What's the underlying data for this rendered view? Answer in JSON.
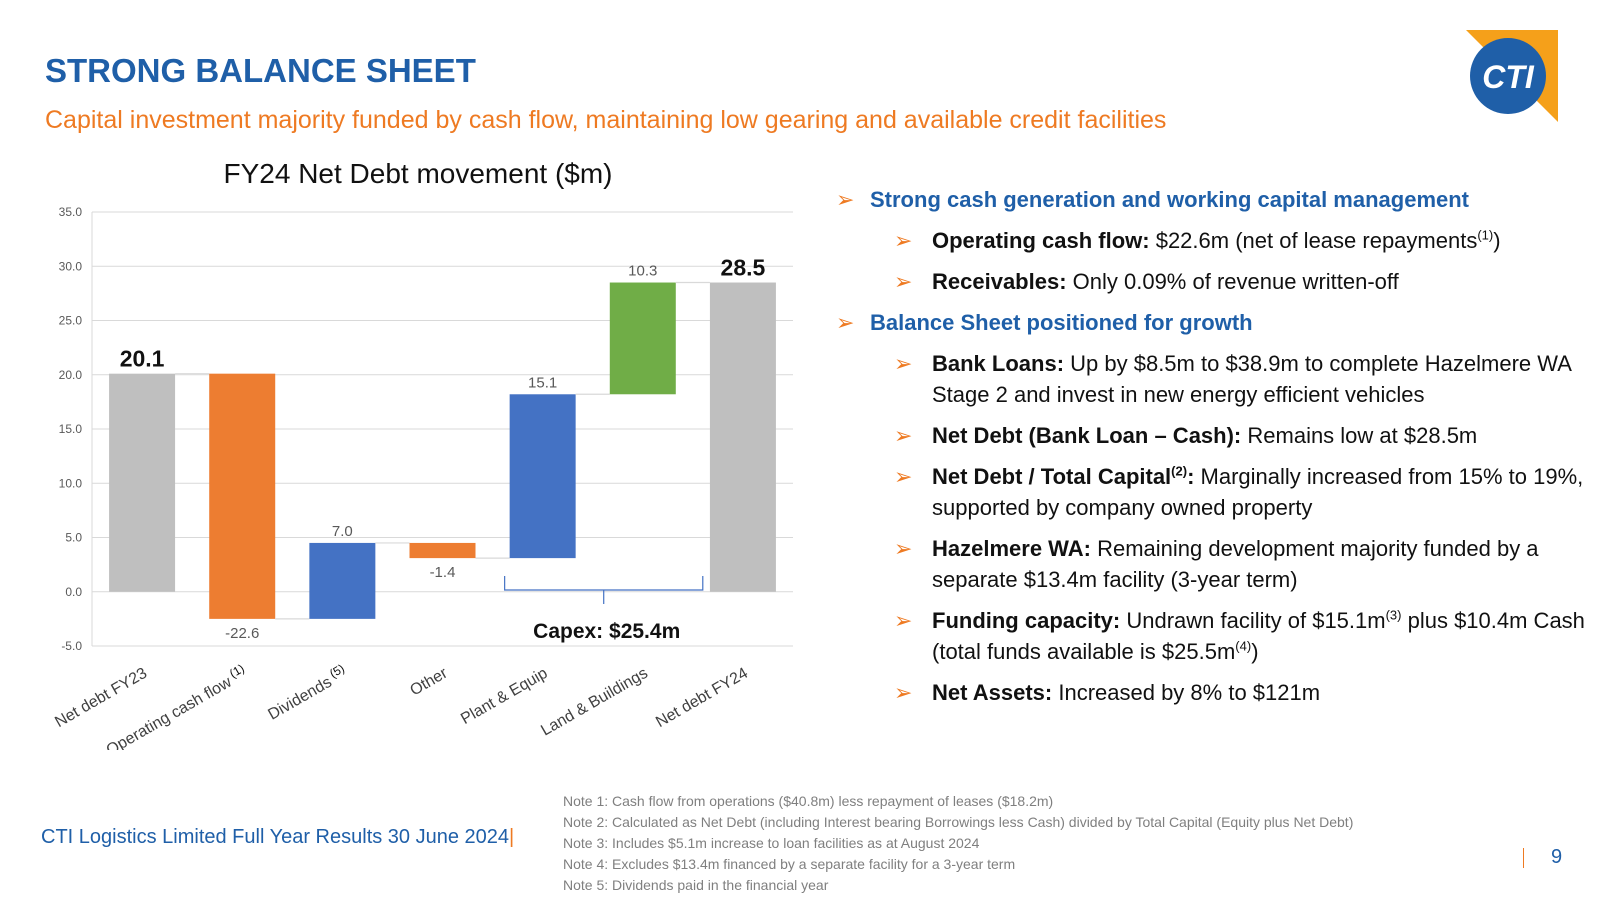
{
  "slide": {
    "title": "STRONG BALANCE SHEET",
    "subtitle": "Capital investment majority funded by cash flow, maintaining low gearing and available credit facilities",
    "logo_text": "CTI",
    "footer": "CTI Logistics Limited Full Year Results 30 June 2024",
    "page_number": "9"
  },
  "colors": {
    "title": "#1f5fa8",
    "accent": "#ee7a22",
    "total_bar": "#bfbfbf",
    "negative_bar": "#ed7d31",
    "capex_bar": "#4472c4",
    "land_bar": "#70ad47",
    "logo_blue": "#1f5fa8",
    "logo_orange": "#f5a01a"
  },
  "chart_data": {
    "type": "bar",
    "subtype": "waterfall",
    "title": "FY24 Net Debt movement ($m)",
    "categories": [
      "Net debt FY23",
      "Operating cash flow",
      "Dividends",
      "Other",
      "Plant & Equip",
      "Land & Buildings",
      "Net debt FY24"
    ],
    "category_superscripts": [
      "",
      "(1)",
      "(5)",
      "",
      "",
      "",
      ""
    ],
    "labels": [
      "20.1",
      "-22.6",
      "7.0",
      "-1.4",
      "15.1",
      "10.3",
      "28.5"
    ],
    "bars": [
      {
        "start": 0,
        "end": 20.1,
        "kind": "total"
      },
      {
        "start": 20.1,
        "end": -2.5,
        "kind": "negative"
      },
      {
        "start": -2.5,
        "end": 4.5,
        "kind": "capex"
      },
      {
        "start": 4.5,
        "end": 3.1,
        "kind": "negative"
      },
      {
        "start": 3.1,
        "end": 18.2,
        "kind": "capex"
      },
      {
        "start": 18.2,
        "end": 28.5,
        "kind": "land"
      },
      {
        "start": 0,
        "end": 28.5,
        "kind": "total"
      }
    ],
    "ylim": [
      -5,
      35
    ],
    "yticks": [
      "35.0",
      "30.0",
      "25.0",
      "20.0",
      "15.0",
      "10.0",
      "5.0",
      "0.0",
      "-5.0"
    ],
    "ytick_values": [
      35,
      30,
      25,
      20,
      15,
      10,
      5,
      0,
      -5
    ],
    "grid": true,
    "bracket_label": "Capex: $25.4m"
  },
  "bullets": [
    {
      "level": 1,
      "text": "Strong cash generation and working capital management"
    },
    {
      "level": 2,
      "bold": "Operating cash flow:",
      "text": " $22.6m (net of lease repayments",
      "sup": "(1)",
      "tail": ")"
    },
    {
      "level": 2,
      "bold": "Receivables:",
      "text": " Only 0.09% of revenue written-off"
    },
    {
      "level": 1,
      "text": "Balance Sheet positioned for growth"
    },
    {
      "level": 2,
      "bold": "Bank Loans:",
      "text": " Up by $8.5m to $38.9m to complete Hazelmere WA Stage 2 and invest in new energy efficient vehicles"
    },
    {
      "level": 2,
      "bold": "Net Debt (Bank Loan – Cash):",
      "text": " Remains low at $28.5m"
    },
    {
      "level": 2,
      "bold": "Net Debt / Total Capital",
      "boldsup": "(2)",
      "bold2": ":",
      "text": " Marginally increased from 15% to 19%, supported by company owned property"
    },
    {
      "level": 2,
      "bold": "Hazelmere WA:",
      "text": " Remaining development majority funded by a separate $13.4m facility (3-year term)"
    },
    {
      "level": 2,
      "bold": "Funding capacity:",
      "text": " Undrawn facility of $15.1m",
      "sup": "(3)",
      "tail": " plus $10.4m Cash (total funds available is $25.5m",
      "sup2": "(4)",
      "tail2": ")"
    },
    {
      "level": 2,
      "bold": "Net Assets:",
      "text": " Increased by 8% to $121m"
    }
  ],
  "notes": [
    "Note 1: Cash flow from operations ($40.8m) less repayment of leases ($18.2m)",
    "Note 2: Calculated as Net Debt (including Interest bearing Borrowings less Cash) divided by Total Capital (Equity plus Net Debt)",
    "Note 3: Includes $5.1m increase to loan facilities as at August 2024",
    "Note 4: Excludes $13.4m financed by a separate facility for a 3-year term",
    "Note 5: Dividends paid in the financial year"
  ]
}
